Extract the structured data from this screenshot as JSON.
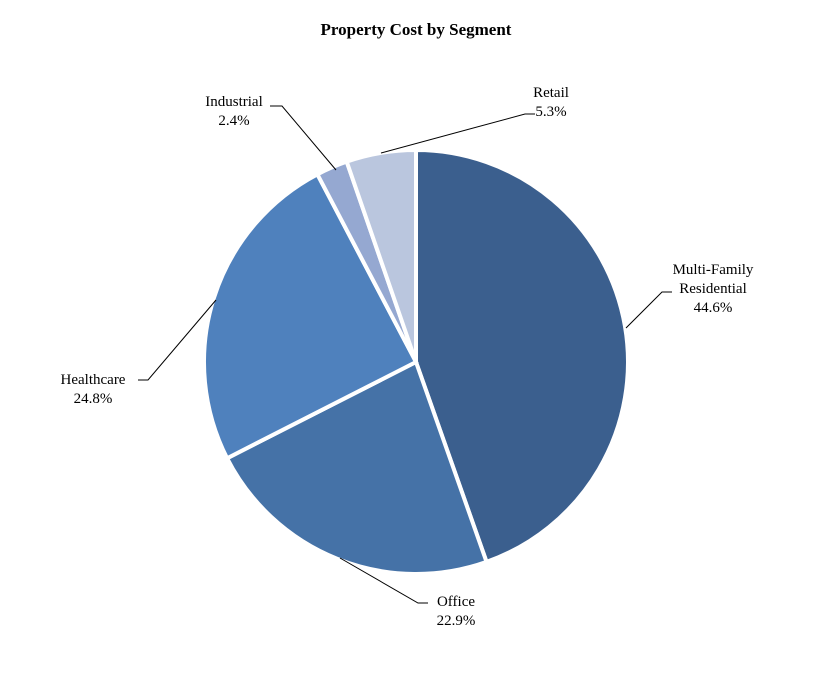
{
  "chart_data": {
    "type": "pie",
    "title": "Property Cost by Segment",
    "start": "12 o'clock, clockwise",
    "slices": [
      {
        "name": "Multi-Family Residential",
        "label_lines": [
          "Multi-Family",
          "Residential"
        ],
        "pct_label": "44.6%",
        "value": 44.6,
        "color": "#3B5F8E"
      },
      {
        "name": "Office",
        "label_lines": [
          "Office"
        ],
        "pct_label": "22.9%",
        "value": 22.9,
        "color": "#4572A7"
      },
      {
        "name": "Healthcare",
        "label_lines": [
          "Healthcare"
        ],
        "pct_label": "24.8%",
        "value": 24.8,
        "color": "#4F81BD"
      },
      {
        "name": "Industrial",
        "label_lines": [
          "Industrial"
        ],
        "pct_label": "2.4%",
        "value": 2.4,
        "color": "#95A8D1"
      },
      {
        "name": "Retail",
        "label_lines": [
          "Retail"
        ],
        "pct_label": "5.3%",
        "value": 5.3,
        "color": "#BAC6DE"
      }
    ]
  }
}
